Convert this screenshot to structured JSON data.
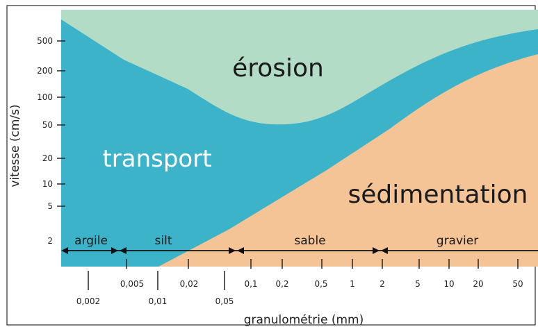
{
  "colors": {
    "erosion": "#b3dcc6",
    "transport": "#3cb3c8",
    "sedimentation": "#f5c496",
    "axis": "#222222",
    "frame": "#000000"
  },
  "regions": {
    "erosion": "érosion",
    "transport": "transport",
    "sedimentation": "sédimentation"
  },
  "axes": {
    "y_title": "vitesse (cm/s)",
    "x_title": "granulométrie (mm)",
    "y_ticks": [
      "500",
      "200",
      "100",
      "50",
      "20",
      "10",
      "5",
      "2"
    ],
    "x_ticks_upper": [
      "0,005",
      "0,02",
      "0,1",
      "0,2",
      "0,5",
      "1",
      "2",
      "5",
      "10",
      "20",
      "50"
    ],
    "x_ticks_lower": [
      "0,002",
      "0,01",
      "0,05"
    ]
  },
  "classes": [
    "argile",
    "silt",
    "sable",
    "gravier"
  ]
}
